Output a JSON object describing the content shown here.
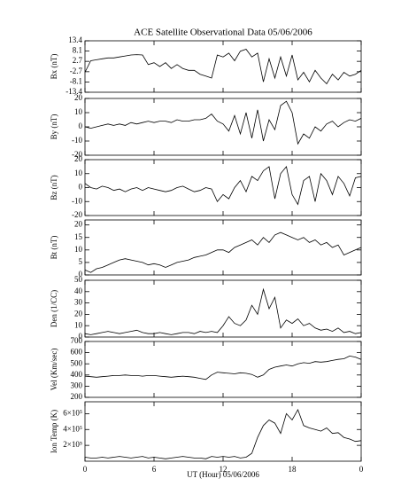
{
  "title": "ACE Satellite Observational Data   05/06/2006",
  "xlabel": "UT (Hour)   05/06/2006",
  "xlim": [
    0,
    24
  ],
  "xticks": [
    0,
    6,
    12,
    18,
    {
      "value": 24,
      "label": "0"
    }
  ],
  "chart_data": [
    {
      "type": "line",
      "ylabel": "Bx (nT)",
      "ylim": [
        -13.4,
        13.4
      ],
      "yticks": [
        -13.4,
        -8.1,
        -2.7,
        2.7,
        8.1,
        13.4
      ],
      "x": [
        0,
        0.5,
        1,
        1.5,
        2,
        2.5,
        3,
        3.5,
        4,
        4.5,
        5,
        5.5,
        6,
        6.5,
        7,
        7.5,
        8,
        8.5,
        9,
        9.5,
        10,
        10.5,
        11,
        11.5,
        12,
        12.5,
        13,
        13.5,
        14,
        14.5,
        15,
        15.5,
        16,
        16.5,
        17,
        17.5,
        18,
        18.5,
        19,
        19.5,
        20,
        20.5,
        21,
        21.5,
        22,
        22.5,
        23,
        23.5,
        24
      ],
      "series": [
        {
          "color": "#000000",
          "values": [
            -3,
            3,
            3.5,
            4,
            4.5,
            4.5,
            5,
            5.5,
            6,
            6.2,
            6,
            1,
            2,
            0,
            2,
            -1,
            1,
            -1,
            -2,
            -2,
            -4,
            -5,
            -6,
            6,
            5,
            7,
            3,
            8,
            9,
            5,
            7,
            -8,
            4,
            -6,
            5,
            -5,
            6,
            -7,
            -3,
            -8,
            -2,
            -6,
            -9,
            -4,
            -7,
            -3,
            -5,
            -4,
            -2
          ]
        }
      ]
    },
    {
      "type": "line",
      "ylabel": "By (nT)",
      "ylim": [
        -20,
        20
      ],
      "yticks": [
        -20,
        -10,
        0,
        10,
        20
      ],
      "x": [
        0,
        0.5,
        1,
        1.5,
        2,
        2.5,
        3,
        3.5,
        4,
        4.5,
        5,
        5.5,
        6,
        6.5,
        7,
        7.5,
        8,
        8.5,
        9,
        9.5,
        10,
        10.5,
        11,
        11.5,
        12,
        12.5,
        13,
        13.5,
        14,
        14.5,
        15,
        15.5,
        16,
        16.5,
        17,
        17.5,
        18,
        18.5,
        19,
        19.5,
        20,
        20.5,
        21,
        21.5,
        22,
        22.5,
        23,
        23.5,
        24
      ],
      "series": [
        {
          "color": "#000000",
          "values": [
            0,
            -1,
            0,
            1,
            2,
            1,
            2,
            1,
            3,
            2,
            3,
            4,
            3,
            4,
            4,
            3,
            5,
            4,
            4,
            5,
            5,
            6,
            9,
            4,
            2,
            -3,
            8,
            -5,
            10,
            -8,
            12,
            -10,
            5,
            -2,
            15,
            18,
            10,
            -12,
            -5,
            -8,
            0,
            -3,
            2,
            4,
            0,
            3,
            5,
            4,
            6
          ]
        }
      ]
    },
    {
      "type": "line",
      "ylabel": "Bz (nT)",
      "ylim": [
        -20,
        20
      ],
      "yticks": [
        -20,
        -10,
        0,
        10,
        20
      ],
      "x": [
        0,
        0.5,
        1,
        1.5,
        2,
        2.5,
        3,
        3.5,
        4,
        4.5,
        5,
        5.5,
        6,
        6.5,
        7,
        7.5,
        8,
        8.5,
        9,
        9.5,
        10,
        10.5,
        11,
        11.5,
        12,
        12.5,
        13,
        13.5,
        14,
        14.5,
        15,
        15.5,
        16,
        16.5,
        17,
        17.5,
        18,
        18.5,
        19,
        19.5,
        20,
        20.5,
        21,
        21.5,
        22,
        22.5,
        23,
        23.5,
        24
      ],
      "series": [
        {
          "color": "#000000",
          "values": [
            3,
            0,
            -1,
            1,
            0,
            -2,
            -1,
            -3,
            -1,
            0,
            -2,
            0,
            -1,
            -2,
            -3,
            -2,
            0,
            1,
            -1,
            -3,
            -2,
            0,
            -1,
            -10,
            -5,
            -8,
            0,
            5,
            -3,
            8,
            5,
            12,
            15,
            -8,
            10,
            15,
            -5,
            -12,
            5,
            8,
            -10,
            10,
            5,
            -5,
            8,
            3,
            -6,
            7,
            8
          ]
        }
      ]
    },
    {
      "type": "line",
      "ylabel": "Bt (nT)",
      "ylim": [
        0,
        22
      ],
      "yticks": [
        0,
        5,
        10,
        15,
        20
      ],
      "x": [
        0,
        0.5,
        1,
        1.5,
        2,
        2.5,
        3,
        3.5,
        4,
        4.5,
        5,
        5.5,
        6,
        6.5,
        7,
        7.5,
        8,
        8.5,
        9,
        9.5,
        10,
        10.5,
        11,
        11.5,
        12,
        12.5,
        13,
        13.5,
        14,
        14.5,
        15,
        15.5,
        16,
        16.5,
        17,
        17.5,
        18,
        18.5,
        19,
        19.5,
        20,
        20.5,
        21,
        21.5,
        22,
        22.5,
        23,
        23.5,
        24
      ],
      "series": [
        {
          "color": "#000000",
          "values": [
            2,
            1,
            2.5,
            3,
            4,
            5,
            6,
            6.5,
            6,
            5.5,
            5,
            4,
            4.5,
            4,
            3,
            4,
            5,
            5.5,
            6,
            7,
            7.5,
            8,
            9,
            10,
            10,
            9,
            11,
            12,
            13,
            14,
            12,
            15,
            13,
            16,
            17,
            16,
            15,
            14,
            15,
            13,
            14,
            12,
            13,
            11,
            12,
            8,
            9,
            10,
            11
          ]
        }
      ]
    },
    {
      "type": "line",
      "ylabel": "Den (1/CC)",
      "ylim": [
        0,
        50
      ],
      "yticks": [
        0,
        10,
        20,
        30,
        40,
        50
      ],
      "x": [
        0,
        0.5,
        1,
        1.5,
        2,
        2.5,
        3,
        3.5,
        4,
        4.5,
        5,
        5.5,
        6,
        6.5,
        7,
        7.5,
        8,
        8.5,
        9,
        9.5,
        10,
        10.5,
        11,
        11.5,
        12,
        12.5,
        13,
        13.5,
        14,
        14.5,
        15,
        15.5,
        16,
        16.5,
        17,
        17.5,
        18,
        18.5,
        19,
        19.5,
        20,
        20.5,
        21,
        21.5,
        22,
        22.5,
        23,
        23.5,
        24
      ],
      "series": [
        {
          "color": "#000000",
          "values": [
            3,
            2,
            3,
            4,
            5,
            4,
            3,
            4,
            5,
            6,
            4,
            3,
            3,
            4,
            3,
            2,
            3,
            4,
            4,
            3,
            5,
            4,
            5,
            4,
            10,
            18,
            12,
            10,
            15,
            28,
            20,
            42,
            25,
            35,
            8,
            15,
            12,
            16,
            10,
            12,
            8,
            6,
            7,
            5,
            8,
            4,
            5,
            3,
            4
          ]
        }
      ]
    },
    {
      "type": "line",
      "ylabel": "Vel (Km/sec)",
      "ylim": [
        200,
        700
      ],
      "yticks": [
        200,
        300,
        400,
        500,
        600,
        700
      ],
      "x": [
        0,
        0.5,
        1,
        1.5,
        2,
        2.5,
        3,
        3.5,
        4,
        4.5,
        5,
        5.5,
        6,
        6.5,
        7,
        7.5,
        8,
        8.5,
        9,
        9.5,
        10,
        10.5,
        11,
        11.5,
        12,
        12.5,
        13,
        13.5,
        14,
        14.5,
        15,
        15.5,
        16,
        16.5,
        17,
        17.5,
        18,
        18.5,
        19,
        19.5,
        20,
        20.5,
        21,
        21.5,
        22,
        22.5,
        23,
        23.5,
        24
      ],
      "series": [
        {
          "color": "#000000",
          "values": [
            390,
            385,
            380,
            385,
            390,
            395,
            395,
            400,
            395,
            395,
            390,
            395,
            395,
            390,
            385,
            380,
            385,
            390,
            385,
            380,
            370,
            360,
            400,
            425,
            420,
            415,
            410,
            420,
            415,
            405,
            380,
            400,
            450,
            470,
            480,
            490,
            480,
            500,
            510,
            505,
            520,
            515,
            520,
            530,
            540,
            545,
            570,
            560,
            540
          ]
        }
      ]
    },
    {
      "type": "line",
      "ylabel": "Ion Temp (K)",
      "ylim": [
        0,
        750000
      ],
      "yticks": [
        {
          "value": 200000,
          "label": "2×10⁵"
        },
        {
          "value": 400000,
          "label": "4×10⁵"
        },
        {
          "value": 600000,
          "label": "6×10⁵"
        }
      ],
      "x": [
        0,
        0.5,
        1,
        1.5,
        2,
        2.5,
        3,
        3.5,
        4,
        4.5,
        5,
        5.5,
        6,
        6.5,
        7,
        7.5,
        8,
        8.5,
        9,
        9.5,
        10,
        10.5,
        11,
        11.5,
        12,
        12.5,
        13,
        13.5,
        14,
        14.5,
        15,
        15.5,
        16,
        16.5,
        17,
        17.5,
        18,
        18.5,
        19,
        19.5,
        20,
        20.5,
        21,
        21.5,
        22,
        22.5,
        23,
        23.5,
        24
      ],
      "series": [
        {
          "color": "#000000",
          "values": [
            50000,
            40000,
            40000,
            50000,
            40000,
            50000,
            60000,
            50000,
            40000,
            50000,
            60000,
            40000,
            50000,
            40000,
            30000,
            40000,
            50000,
            60000,
            50000,
            40000,
            40000,
            30000,
            60000,
            50000,
            60000,
            50000,
            60000,
            40000,
            50000,
            100000,
            300000,
            450000,
            520000,
            480000,
            350000,
            600000,
            520000,
            650000,
            450000,
            420000,
            400000,
            380000,
            420000,
            350000,
            360000,
            300000,
            280000,
            250000,
            260000
          ]
        }
      ]
    }
  ]
}
